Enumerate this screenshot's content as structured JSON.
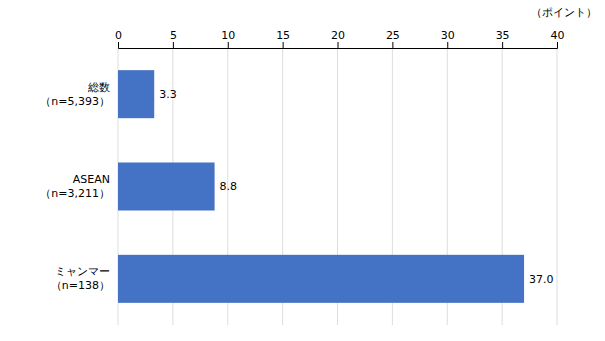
{
  "chart_data": {
    "type": "bar",
    "orientation": "horizontal",
    "categories": [
      "ミャンマー\n（n=138）",
      "ASEAN\n（n=3,211）",
      "総数\n（n=5,393）"
    ],
    "values": [
      37.0,
      8.8,
      3.3
    ],
    "value_labels": [
      "37.0",
      "8.8",
      "3.3"
    ],
    "data_labels": true,
    "color": "#4472C4",
    "xlabel": "（ポイント）",
    "xlim": [
      0,
      40
    ],
    "xticks": [
      0,
      5,
      10,
      15,
      20,
      25,
      30,
      35,
      40
    ],
    "grid": true
  }
}
